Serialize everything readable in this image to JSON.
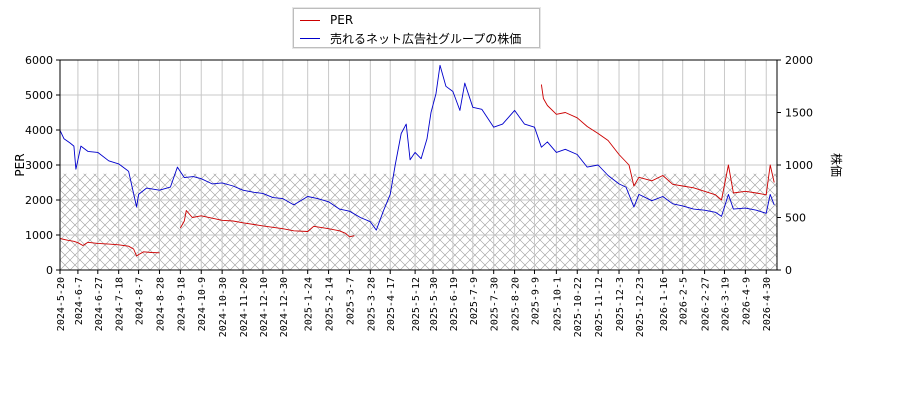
{
  "chart_data": {
    "type": "line",
    "title": "",
    "xlabel": "",
    "ylabel": "PER",
    "y2label": "株価",
    "ylim": [
      0,
      6000
    ],
    "y2lim": [
      0,
      2000
    ],
    "y_ticks": [
      "0",
      "1000",
      "2000",
      "3000",
      "4000",
      "5000",
      "6000"
    ],
    "y2_ticks": [
      "0",
      "500",
      "1000",
      "1500",
      "2000"
    ],
    "x_ticks": [
      "2024-5-20",
      "2024-6-7",
      "2024-6-27",
      "2024-7-18",
      "2024-8-7",
      "2024-8-28",
      "2024-9-18",
      "2024-10-9",
      "2024-10-30",
      "2024-11-20",
      "2024-12-10",
      "2024-12-30",
      "2025-1-24",
      "2025-2-14",
      "2025-3-7",
      "2025-3-28",
      "2025-4-17",
      "2025-5-12",
      "2025-5-30",
      "2025-6-19",
      "2025-7-9",
      "2025-7-30",
      "2025-8-20",
      "2025-9-9",
      "2025-10-1",
      "2025-10-22",
      "2025-11-12",
      "2025-12-3",
      "2025-12-23",
      "2026-1-16",
      "2026-2-5",
      "2026-2-27",
      "2026-3-19",
      "2026-4-9",
      "2026-4-30"
    ],
    "grid": true,
    "legend_position": "top-center",
    "hatched_region_max": 2750,
    "series": [
      {
        "name": "PER",
        "axis": "left",
        "color": "#cc0000",
        "points": [
          [
            "2024-5-20",
            900
          ],
          [
            "2024-5-28",
            850
          ],
          [
            "2024-6-3",
            820
          ],
          [
            "2024-6-7",
            780
          ],
          [
            "2024-6-12",
            700
          ],
          [
            "2024-6-17",
            790
          ],
          [
            "2024-6-27",
            760
          ],
          [
            "2024-7-8",
            740
          ],
          [
            "2024-7-18",
            720
          ],
          [
            "2024-7-28",
            680
          ],
          [
            "2024-8-2",
            600
          ],
          [
            "2024-8-5",
            400
          ],
          [
            "2024-8-7",
            440
          ],
          [
            "2024-8-12",
            520
          ],
          [
            "2024-8-20",
            500
          ],
          [
            "2024-8-28",
            490
          ],
          null,
          [
            "2024-9-18",
            1200
          ],
          [
            "2024-9-22",
            1400
          ],
          [
            "2024-9-24",
            1700
          ],
          [
            "2024-9-30",
            1500
          ],
          [
            "2024-10-9",
            1550
          ],
          [
            "2024-10-20",
            1480
          ],
          [
            "2024-10-30",
            1420
          ],
          [
            "2024-11-10",
            1400
          ],
          [
            "2024-11-20",
            1350
          ],
          [
            "2024-12-1",
            1300
          ],
          [
            "2024-12-10",
            1260
          ],
          [
            "2024-12-20",
            1220
          ],
          [
            "2024-12-30",
            1180
          ],
          [
            "2025-1-10",
            1120
          ],
          [
            "2025-1-24",
            1100
          ],
          [
            "2025-1-30",
            1250
          ],
          [
            "2025-2-14",
            1180
          ],
          [
            "2025-2-25",
            1120
          ],
          [
            "2025-3-3",
            1050
          ],
          [
            "2025-3-7",
            950
          ],
          [
            "2025-3-12",
            980
          ],
          null,
          [
            "2025-9-16",
            5300
          ],
          [
            "2025-9-18",
            4900
          ],
          [
            "2025-9-22",
            4700
          ],
          [
            "2025-10-1",
            4450
          ],
          [
            "2025-10-10",
            4500
          ],
          [
            "2025-10-22",
            4350
          ],
          [
            "2025-11-1",
            4100
          ],
          [
            "2025-11-12",
            3900
          ],
          [
            "2025-11-22",
            3700
          ],
          [
            "2025-12-3",
            3300
          ],
          [
            "2025-12-13",
            3000
          ],
          [
            "2025-12-18",
            2400
          ],
          [
            "2025-12-23",
            2650
          ],
          [
            "2026-1-5",
            2550
          ],
          [
            "2026-1-16",
            2700
          ],
          [
            "2026-1-26",
            2450
          ],
          [
            "2026-2-5",
            2400
          ],
          [
            "2026-2-16",
            2350
          ],
          [
            "2026-2-27",
            2250
          ],
          [
            "2026-3-10",
            2150
          ],
          [
            "2026-3-16",
            2000
          ],
          [
            "2026-3-23",
            3000
          ],
          [
            "2026-3-28",
            2200
          ],
          [
            "2026-4-9",
            2250
          ],
          [
            "2026-4-20",
            2200
          ],
          [
            "2026-4-30",
            2150
          ],
          [
            "2026-5-4",
            3000
          ],
          [
            "2026-5-8",
            2500
          ]
        ]
      },
      {
        "name": "売れるネット広告社グループの株価",
        "axis": "right",
        "color": "#0000cc",
        "points": [
          [
            "2024-5-20",
            1330
          ],
          [
            "2024-5-24",
            1250
          ],
          [
            "2024-5-30",
            1210
          ],
          [
            "2024-6-3",
            1180
          ],
          [
            "2024-6-5",
            960
          ],
          [
            "2024-6-10",
            1180
          ],
          [
            "2024-6-17",
            1130
          ],
          [
            "2024-6-27",
            1120
          ],
          [
            "2024-7-8",
            1040
          ],
          [
            "2024-7-18",
            1010
          ],
          [
            "2024-7-28",
            940
          ],
          [
            "2024-8-5",
            600
          ],
          [
            "2024-8-7",
            720
          ],
          [
            "2024-8-15",
            780
          ],
          [
            "2024-8-28",
            760
          ],
          [
            "2024-9-8",
            790
          ],
          [
            "2024-9-15",
            980
          ],
          [
            "2024-9-22",
            880
          ],
          [
            "2024-10-1",
            890
          ],
          [
            "2024-10-9",
            870
          ],
          [
            "2024-10-20",
            820
          ],
          [
            "2024-10-30",
            830
          ],
          [
            "2024-11-10",
            800
          ],
          [
            "2024-11-20",
            760
          ],
          [
            "2024-12-1",
            740
          ],
          [
            "2024-12-10",
            730
          ],
          [
            "2024-12-20",
            690
          ],
          [
            "2024-12-30",
            680
          ],
          [
            "2025-1-10",
            620
          ],
          [
            "2025-1-24",
            700
          ],
          [
            "2025-2-3",
            680
          ],
          [
            "2025-2-14",
            650
          ],
          [
            "2025-2-25",
            580
          ],
          [
            "2025-3-7",
            560
          ],
          [
            "2025-3-18",
            500
          ],
          [
            "2025-3-28",
            460
          ],
          [
            "2025-4-3",
            380
          ],
          [
            "2025-4-10",
            560
          ],
          [
            "2025-4-17",
            720
          ],
          [
            "2025-4-22",
            1000
          ],
          [
            "2025-4-28",
            1300
          ],
          [
            "2025-5-3",
            1390
          ],
          [
            "2025-5-7",
            1050
          ],
          [
            "2025-5-12",
            1120
          ],
          [
            "2025-5-18",
            1060
          ],
          [
            "2025-5-24",
            1250
          ],
          [
            "2025-5-28",
            1500
          ],
          [
            "2025-6-2",
            1680
          ],
          [
            "2025-6-6",
            1950
          ],
          [
            "2025-6-12",
            1750
          ],
          [
            "2025-6-19",
            1700
          ],
          [
            "2025-6-26",
            1520
          ],
          [
            "2025-7-1",
            1780
          ],
          [
            "2025-7-9",
            1550
          ],
          [
            "2025-7-18",
            1530
          ],
          [
            "2025-7-30",
            1360
          ],
          [
            "2025-8-8",
            1390
          ],
          [
            "2025-8-20",
            1520
          ],
          [
            "2025-8-30",
            1390
          ],
          [
            "2025-9-9",
            1360
          ],
          [
            "2025-9-16",
            1170
          ],
          [
            "2025-9-22",
            1220
          ],
          [
            "2025-10-1",
            1120
          ],
          [
            "2025-10-10",
            1150
          ],
          [
            "2025-10-22",
            1100
          ],
          [
            "2025-11-1",
            980
          ],
          [
            "2025-11-12",
            1000
          ],
          [
            "2025-11-22",
            900
          ],
          [
            "2025-12-3",
            820
          ],
          [
            "2025-12-10",
            790
          ],
          [
            "2025-12-18",
            600
          ],
          [
            "2025-12-23",
            720
          ],
          [
            "2026-1-5",
            660
          ],
          [
            "2026-1-16",
            700
          ],
          [
            "2026-1-26",
            630
          ],
          [
            "2026-2-5",
            610
          ],
          [
            "2026-2-16",
            580
          ],
          [
            "2026-2-27",
            570
          ],
          [
            "2026-3-10",
            550
          ],
          [
            "2026-3-16",
            510
          ],
          [
            "2026-3-23",
            720
          ],
          [
            "2026-3-28",
            580
          ],
          [
            "2026-4-9",
            590
          ],
          [
            "2026-4-20",
            570
          ],
          [
            "2026-4-30",
            540
          ],
          [
            "2026-5-4",
            720
          ],
          [
            "2026-5-8",
            620
          ]
        ]
      }
    ]
  }
}
